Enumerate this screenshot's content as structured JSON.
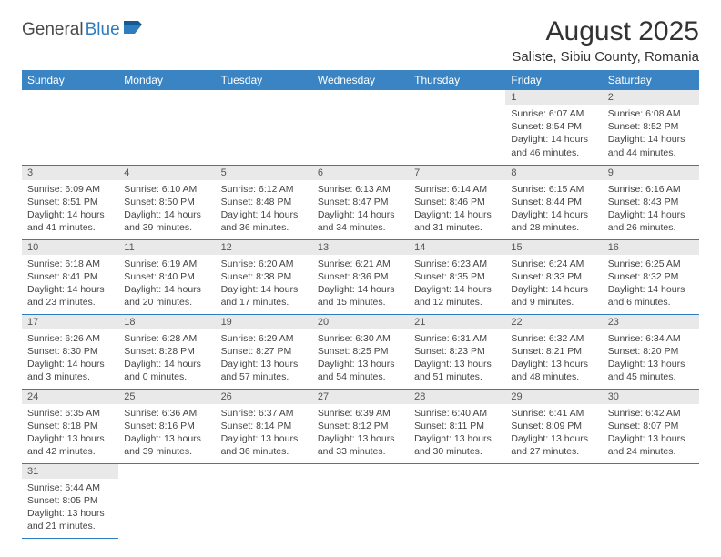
{
  "logo": {
    "part1": "General",
    "part2": "Blue"
  },
  "title": "August 2025",
  "location": "Saliste, Sibiu County, Romania",
  "colors": {
    "header_bg": "#3b84c4",
    "header_text": "#ffffff",
    "brand_blue": "#2f7cc0",
    "brand_gray": "#4a4a4a",
    "daynum_bg": "#e9e9e9",
    "border": "#2f7cc0",
    "body_text": "#444444"
  },
  "weekdays": [
    "Sunday",
    "Monday",
    "Tuesday",
    "Wednesday",
    "Thursday",
    "Friday",
    "Saturday"
  ],
  "days": [
    {
      "n": 1,
      "sr": "6:07 AM",
      "ss": "8:54 PM",
      "dl": "14 hours and 46 minutes."
    },
    {
      "n": 2,
      "sr": "6:08 AM",
      "ss": "8:52 PM",
      "dl": "14 hours and 44 minutes."
    },
    {
      "n": 3,
      "sr": "6:09 AM",
      "ss": "8:51 PM",
      "dl": "14 hours and 41 minutes."
    },
    {
      "n": 4,
      "sr": "6:10 AM",
      "ss": "8:50 PM",
      "dl": "14 hours and 39 minutes."
    },
    {
      "n": 5,
      "sr": "6:12 AM",
      "ss": "8:48 PM",
      "dl": "14 hours and 36 minutes."
    },
    {
      "n": 6,
      "sr": "6:13 AM",
      "ss": "8:47 PM",
      "dl": "14 hours and 34 minutes."
    },
    {
      "n": 7,
      "sr": "6:14 AM",
      "ss": "8:46 PM",
      "dl": "14 hours and 31 minutes."
    },
    {
      "n": 8,
      "sr": "6:15 AM",
      "ss": "8:44 PM",
      "dl": "14 hours and 28 minutes."
    },
    {
      "n": 9,
      "sr": "6:16 AM",
      "ss": "8:43 PM",
      "dl": "14 hours and 26 minutes."
    },
    {
      "n": 10,
      "sr": "6:18 AM",
      "ss": "8:41 PM",
      "dl": "14 hours and 23 minutes."
    },
    {
      "n": 11,
      "sr": "6:19 AM",
      "ss": "8:40 PM",
      "dl": "14 hours and 20 minutes."
    },
    {
      "n": 12,
      "sr": "6:20 AM",
      "ss": "8:38 PM",
      "dl": "14 hours and 17 minutes."
    },
    {
      "n": 13,
      "sr": "6:21 AM",
      "ss": "8:36 PM",
      "dl": "14 hours and 15 minutes."
    },
    {
      "n": 14,
      "sr": "6:23 AM",
      "ss": "8:35 PM",
      "dl": "14 hours and 12 minutes."
    },
    {
      "n": 15,
      "sr": "6:24 AM",
      "ss": "8:33 PM",
      "dl": "14 hours and 9 minutes."
    },
    {
      "n": 16,
      "sr": "6:25 AM",
      "ss": "8:32 PM",
      "dl": "14 hours and 6 minutes."
    },
    {
      "n": 17,
      "sr": "6:26 AM",
      "ss": "8:30 PM",
      "dl": "14 hours and 3 minutes."
    },
    {
      "n": 18,
      "sr": "6:28 AM",
      "ss": "8:28 PM",
      "dl": "14 hours and 0 minutes."
    },
    {
      "n": 19,
      "sr": "6:29 AM",
      "ss": "8:27 PM",
      "dl": "13 hours and 57 minutes."
    },
    {
      "n": 20,
      "sr": "6:30 AM",
      "ss": "8:25 PM",
      "dl": "13 hours and 54 minutes."
    },
    {
      "n": 21,
      "sr": "6:31 AM",
      "ss": "8:23 PM",
      "dl": "13 hours and 51 minutes."
    },
    {
      "n": 22,
      "sr": "6:32 AM",
      "ss": "8:21 PM",
      "dl": "13 hours and 48 minutes."
    },
    {
      "n": 23,
      "sr": "6:34 AM",
      "ss": "8:20 PM",
      "dl": "13 hours and 45 minutes."
    },
    {
      "n": 24,
      "sr": "6:35 AM",
      "ss": "8:18 PM",
      "dl": "13 hours and 42 minutes."
    },
    {
      "n": 25,
      "sr": "6:36 AM",
      "ss": "8:16 PM",
      "dl": "13 hours and 39 minutes."
    },
    {
      "n": 26,
      "sr": "6:37 AM",
      "ss": "8:14 PM",
      "dl": "13 hours and 36 minutes."
    },
    {
      "n": 27,
      "sr": "6:39 AM",
      "ss": "8:12 PM",
      "dl": "13 hours and 33 minutes."
    },
    {
      "n": 28,
      "sr": "6:40 AM",
      "ss": "8:11 PM",
      "dl": "13 hours and 30 minutes."
    },
    {
      "n": 29,
      "sr": "6:41 AM",
      "ss": "8:09 PM",
      "dl": "13 hours and 27 minutes."
    },
    {
      "n": 30,
      "sr": "6:42 AM",
      "ss": "8:07 PM",
      "dl": "13 hours and 24 minutes."
    },
    {
      "n": 31,
      "sr": "6:44 AM",
      "ss": "8:05 PM",
      "dl": "13 hours and 21 minutes."
    }
  ],
  "first_weekday_index": 5,
  "labels": {
    "sunrise": "Sunrise:",
    "sunset": "Sunset:",
    "daylight": "Daylight:"
  }
}
